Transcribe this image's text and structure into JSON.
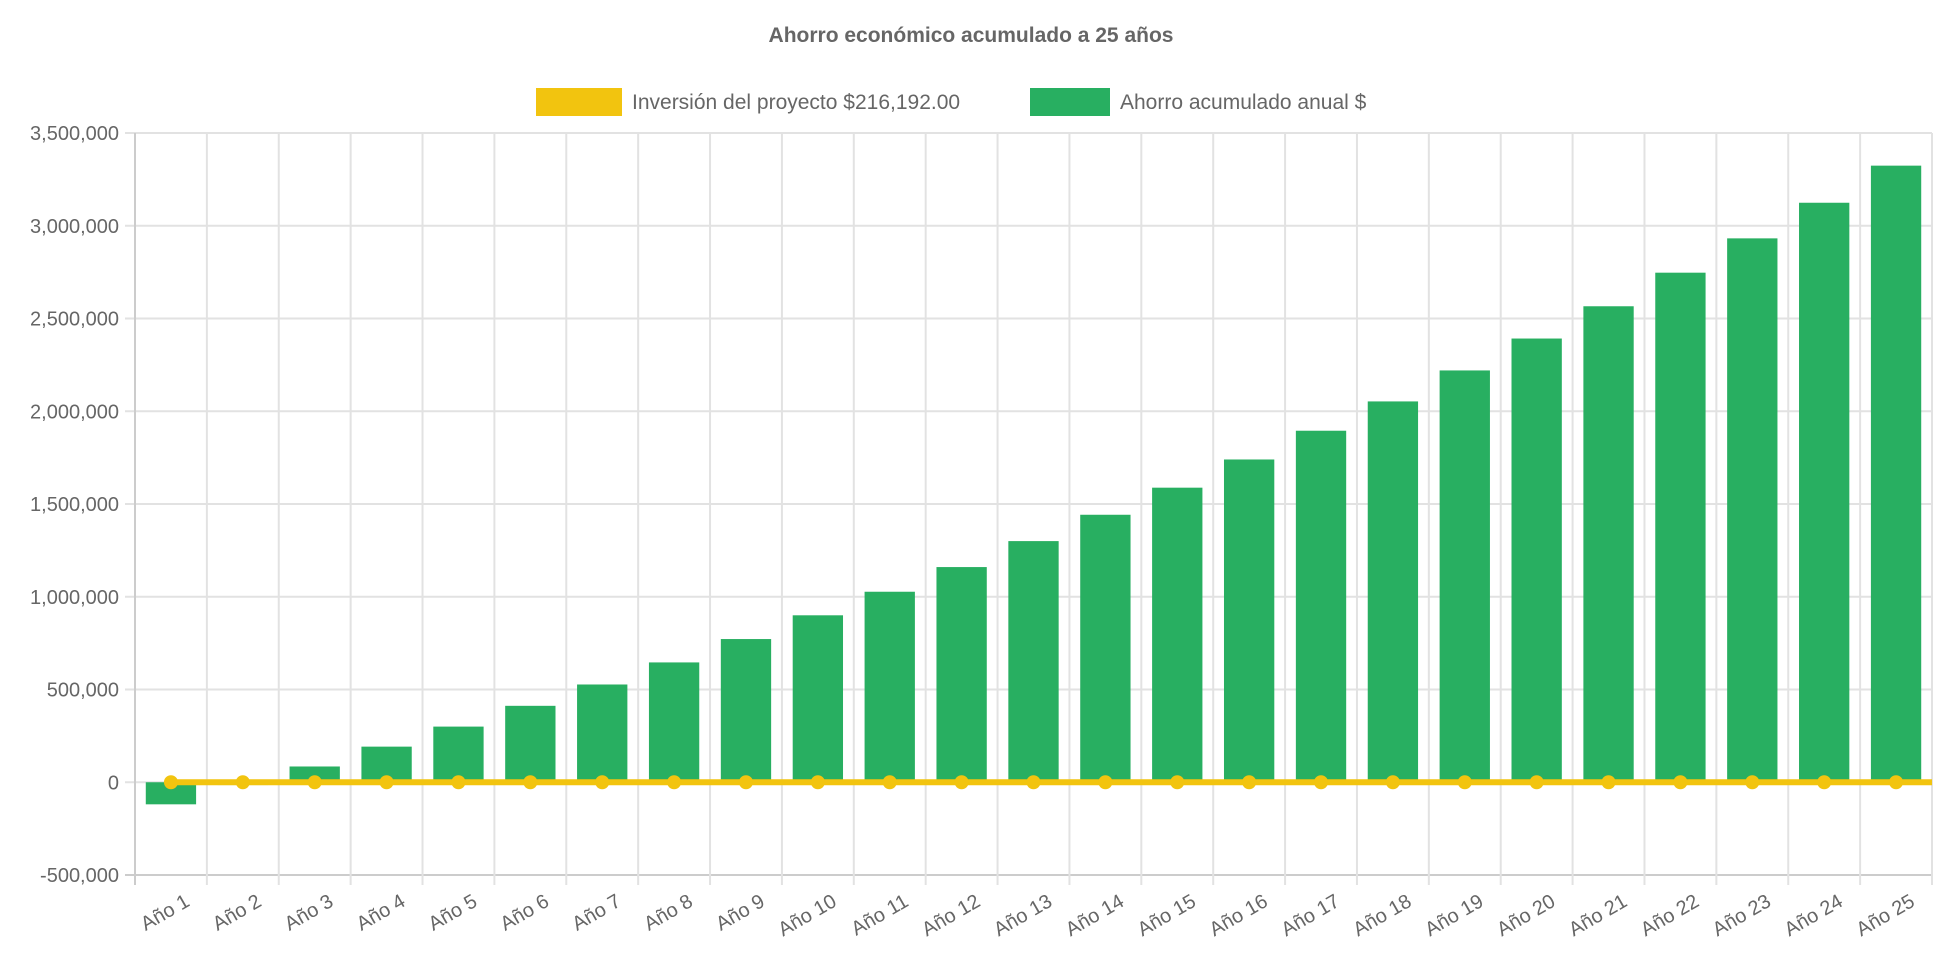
{
  "chart_data": {
    "type": "bar",
    "title": "Ahorro económico acumulado a 25 años",
    "xlabel": "",
    "ylabel": "",
    "ylim": [
      -500000,
      3500000
    ],
    "yticks": [
      "-500,000",
      "0",
      "500,000",
      "1,000,000",
      "1,500,000",
      "2,000,000",
      "2,500,000",
      "3,000,000",
      "3,500,000"
    ],
    "ytick_values": [
      -500000,
      0,
      500000,
      1000000,
      1500000,
      2000000,
      2500000,
      3000000,
      3500000
    ],
    "grid": true,
    "legend_position": "top",
    "categories": [
      "Año 1",
      "Año 2",
      "Año 3",
      "Año 4",
      "Año 5",
      "Año 6",
      "Año 7",
      "Año 8",
      "Año 9",
      "Año 10",
      "Año 11",
      "Año 12",
      "Año 13",
      "Año 14",
      "Año 15",
      "Año 16",
      "Año 17",
      "Año 18",
      "Año 19",
      "Año 20",
      "Año 21",
      "Año 22",
      "Año 23",
      "Año 24",
      "Año 25"
    ],
    "series": [
      {
        "name": "Inversión del proyecto $216,192.00",
        "type": "line",
        "color": "#F2C40F",
        "values": [
          0,
          0,
          0,
          0,
          0,
          0,
          0,
          0,
          0,
          0,
          0,
          0,
          0,
          0,
          0,
          0,
          0,
          0,
          0,
          0,
          0,
          0,
          0,
          0,
          0
        ]
      },
      {
        "name": "Ahorro acumulado anual $",
        "type": "bar",
        "color": "#28AF61",
        "values": [
          -119000,
          -15000,
          85000,
          192000,
          300000,
          412000,
          527000,
          646000,
          772000,
          900000,
          1027000,
          1160000,
          1300000,
          1442000,
          1588000,
          1740000,
          1895000,
          2053000,
          2220000,
          2392000,
          2566000,
          2747000,
          2932000,
          3124000,
          3324000
        ]
      }
    ]
  }
}
